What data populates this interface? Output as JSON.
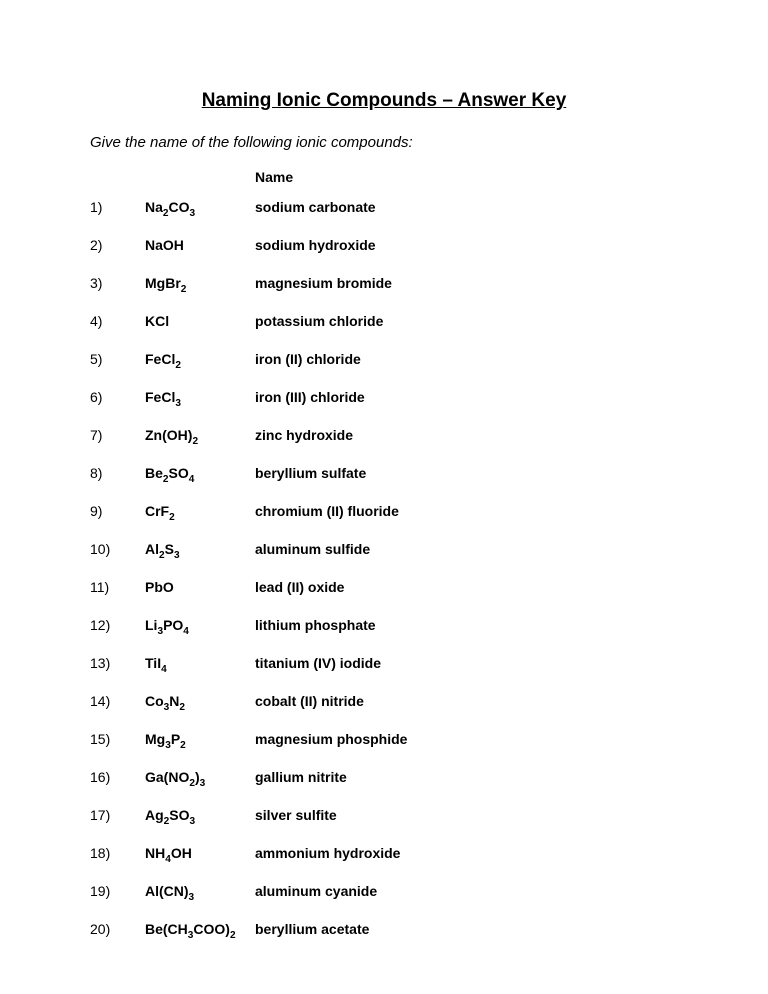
{
  "title": "Naming Ionic Compounds – Answer Key",
  "instruction": "Give the name of the following ionic compounds:",
  "columnHeader": "Name",
  "compounds": [
    {
      "num": "1)",
      "formula": "Na<sub>2</sub>CO<sub>3</sub>",
      "name": "sodium carbonate"
    },
    {
      "num": "2)",
      "formula": "NaOH",
      "name": "sodium hydroxide"
    },
    {
      "num": "3)",
      "formula": "MgBr<sub>2</sub>",
      "name": "magnesium bromide"
    },
    {
      "num": "4)",
      "formula": "KCl",
      "name": "potassium chloride"
    },
    {
      "num": "5)",
      "formula": "FeCl<sub>2</sub>",
      "name": "iron (II) chloride"
    },
    {
      "num": "6)",
      "formula": "FeCl<sub>3</sub>",
      "name": "iron (III) chloride"
    },
    {
      "num": "7)",
      "formula": "Zn(OH)<sub>2</sub>",
      "name": "zinc hydroxide"
    },
    {
      "num": "8)",
      "formula": "Be<sub>2</sub>SO<sub>4</sub>",
      "name": "beryllium sulfate"
    },
    {
      "num": "9)",
      "formula": "CrF<sub>2</sub>",
      "name": "chromium (II) fluoride"
    },
    {
      "num": "10)",
      "formula": "Al<sub>2</sub>S<sub>3</sub>",
      "name": "aluminum sulfide"
    },
    {
      "num": "11)",
      "formula": "PbO",
      "name": "lead (II) oxide"
    },
    {
      "num": "12)",
      "formula": "Li<sub>3</sub>PO<sub>4</sub>",
      "name": "lithium phosphate"
    },
    {
      "num": "13)",
      "formula": "TiI<sub>4</sub>",
      "name": "titanium (IV) iodide"
    },
    {
      "num": "14)",
      "formula": "Co<sub>3</sub>N<sub>2</sub>",
      "name": "cobalt (II) nitride"
    },
    {
      "num": "15)",
      "formula": "Mg<sub>3</sub>P<sub>2</sub>",
      "name": "magnesium phosphide"
    },
    {
      "num": "16)",
      "formula": "Ga(NO<sub>2</sub>)<sub>3</sub>",
      "name": "gallium nitrite"
    },
    {
      "num": "17)",
      "formula": "Ag<sub>2</sub>SO<sub>3</sub>",
      "name": "silver sulfite"
    },
    {
      "num": "18)",
      "formula": "NH<sub>4</sub>OH",
      "name": "ammonium hydroxide"
    },
    {
      "num": "19)",
      "formula": "Al(CN)<sub>3</sub>",
      "name": "aluminum cyanide"
    },
    {
      "num": "20)",
      "formula": "Be(CH<sub>3</sub>COO)<sub>2</sub>",
      "name": "beryllium acetate"
    }
  ]
}
